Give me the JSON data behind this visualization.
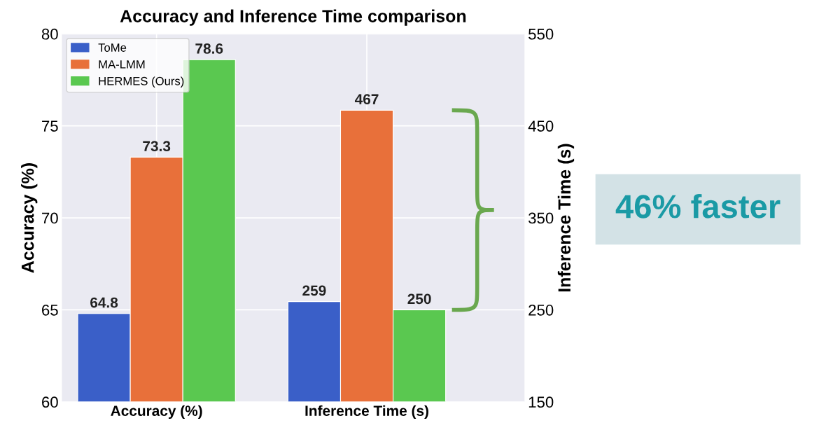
{
  "chart_data": {
    "type": "bar",
    "title": "Accuracy and Inference Time comparison",
    "categories": [
      "Accuracy (%)",
      "Inference Time (s)"
    ],
    "ylabel": "Accuracy (%)",
    "y2label": "Inference Time (s)",
    "series": [
      {
        "name": "ToMe",
        "color": "#3a5fc8",
        "values": [
          64.8,
          null
        ]
      },
      {
        "name": "MA-LMM",
        "color": "#e8703a",
        "values": [
          73.3,
          null
        ]
      },
      {
        "name": "HERMES (Ours)",
        "color": "#5ac850",
        "values": [
          78.6,
          null
        ]
      },
      {
        "color": "#3a5fc8",
        "values": [
          null,
          259
        ],
        "axis": "y2"
      },
      {
        "color": "#e8703a",
        "values": [
          null,
          467
        ],
        "axis": "y2"
      },
      {
        "color": "#5ac850",
        "values": [
          null,
          250
        ],
        "axis": "y2"
      }
    ],
    "ylim": [
      60,
      80
    ],
    "yticks": [
      60,
      65,
      70,
      75,
      80
    ],
    "y2lim": [
      150,
      550
    ],
    "y2ticks": [
      150,
      250,
      350,
      450,
      550
    ],
    "grid": true,
    "legend": "top left",
    "data_labels": true,
    "annotations": [
      "46% faster"
    ]
  }
}
